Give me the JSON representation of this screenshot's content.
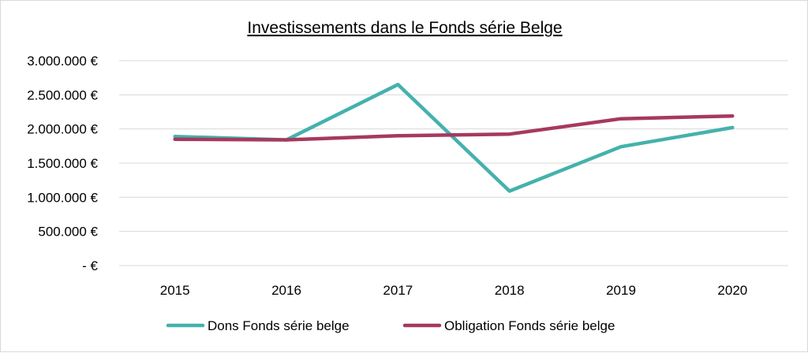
{
  "chart_data": {
    "type": "line",
    "title": "Investissements dans le Fonds série Belge",
    "categories": [
      "2015",
      "2016",
      "2017",
      "2018",
      "2019",
      "2020"
    ],
    "y_tick_values": [
      0,
      500000,
      1000000,
      1500000,
      2000000,
      2500000,
      3000000
    ],
    "y_tick_labels": [
      "-   €",
      "500.000 €",
      "1.000.000 €",
      "1.500.000 €",
      "2.000.000 €",
      "2.500.000 €",
      "3.000.000 €"
    ],
    "ylim": [
      0,
      3000000
    ],
    "grid": true,
    "legend_position": "bottom",
    "series": [
      {
        "name": "Dons Fonds série belge",
        "color": "#45b1ad",
        "values": [
          1890000,
          1840000,
          2650000,
          1090000,
          1740000,
          2020000
        ]
      },
      {
        "name": "Obligation Fonds série belge",
        "color": "#a6395f",
        "values": [
          1850000,
          1840000,
          1900000,
          1925000,
          2150000,
          2190000
        ]
      }
    ]
  }
}
